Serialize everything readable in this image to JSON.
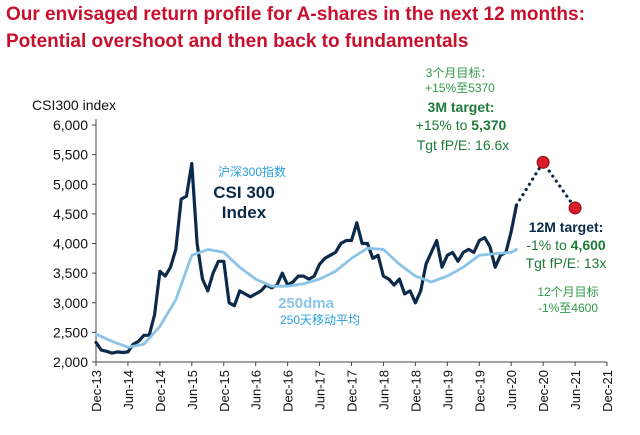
{
  "title_line1": "Our envisaged return profile for A-shares in the next 12 months:",
  "title_line2": "Potential overshoot and then back to fundamentals",
  "chart_data": {
    "type": "line",
    "ylabel": "CSI300 index",
    "ylim": [
      2000,
      6000
    ],
    "yticks": [
      2000,
      2500,
      3000,
      3500,
      4000,
      4500,
      5000,
      5500,
      6000
    ],
    "ytick_labels": [
      "2,000",
      "2,500",
      "3,000",
      "3,500",
      "4,000",
      "4,500",
      "5,000",
      "5,500",
      "6,000"
    ],
    "xlim": [
      "2013-12",
      "2021-12"
    ],
    "xtick_labels": [
      "Dec-13",
      "Jun-14",
      "Dec-14",
      "Jun-15",
      "Dec-15",
      "Jun-16",
      "Dec-16",
      "Jun-17",
      "Dec-17",
      "Jun-18",
      "Dec-18",
      "Jun-19",
      "Dec-19",
      "Jun-20",
      "Dec-20",
      "Jun-21",
      "Dec-21"
    ],
    "grid": false,
    "series": [
      {
        "name": "CSI 300 Index",
        "name_cn": "沪深300指数",
        "color": "#0b2a4a",
        "x": [
          "2013-12",
          "2014-01",
          "2014-02",
          "2014-03",
          "2014-04",
          "2014-05",
          "2014-06",
          "2014-07",
          "2014-08",
          "2014-09",
          "2014-10",
          "2014-11",
          "2014-12",
          "2015-01",
          "2015-02",
          "2015-03",
          "2015-04",
          "2015-05",
          "2015-06",
          "2015-07",
          "2015-08",
          "2015-09",
          "2015-10",
          "2015-11",
          "2015-12",
          "2016-01",
          "2016-02",
          "2016-03",
          "2016-04",
          "2016-05",
          "2016-06",
          "2016-07",
          "2016-08",
          "2016-09",
          "2016-10",
          "2016-11",
          "2016-12",
          "2017-01",
          "2017-02",
          "2017-03",
          "2017-04",
          "2017-05",
          "2017-06",
          "2017-07",
          "2017-08",
          "2017-09",
          "2017-10",
          "2017-11",
          "2017-12",
          "2018-01",
          "2018-02",
          "2018-03",
          "2018-04",
          "2018-05",
          "2018-06",
          "2018-07",
          "2018-08",
          "2018-09",
          "2018-10",
          "2018-11",
          "2018-12",
          "2019-01",
          "2019-02",
          "2019-03",
          "2019-04",
          "2019-05",
          "2019-06",
          "2019-07",
          "2019-08",
          "2019-09",
          "2019-10",
          "2019-11",
          "2019-12",
          "2020-01",
          "2020-02",
          "2020-03",
          "2020-04",
          "2020-05",
          "2020-06",
          "2020-07"
        ],
        "y": [
          2330,
          2200,
          2180,
          2150,
          2170,
          2160,
          2170,
          2300,
          2350,
          2450,
          2450,
          2800,
          3530,
          3450,
          3600,
          3900,
          4750,
          4800,
          5350,
          4000,
          3400,
          3200,
          3500,
          3700,
          3700,
          3000,
          2950,
          3200,
          3150,
          3100,
          3150,
          3200,
          3300,
          3250,
          3300,
          3500,
          3300,
          3350,
          3450,
          3450,
          3400,
          3450,
          3650,
          3750,
          3800,
          3850,
          4000,
          4050,
          4050,
          4350,
          4000,
          4000,
          3750,
          3800,
          3450,
          3400,
          3300,
          3400,
          3150,
          3200,
          3000,
          3200,
          3650,
          3850,
          4050,
          3600,
          3800,
          3850,
          3700,
          3850,
          3900,
          3850,
          4050,
          4100,
          3950,
          3600,
          3800,
          3850,
          4200,
          4650
        ]
      },
      {
        "name": "250dma",
        "name_cn": "250天移动平均",
        "color": "#8cc4e8",
        "x": [
          "2013-12",
          "2014-03",
          "2014-06",
          "2014-09",
          "2014-12",
          "2015-03",
          "2015-06",
          "2015-09",
          "2015-12",
          "2016-03",
          "2016-06",
          "2016-09",
          "2016-12",
          "2017-03",
          "2017-06",
          "2017-09",
          "2017-12",
          "2018-03",
          "2018-06",
          "2018-09",
          "2018-12",
          "2019-03",
          "2019-06",
          "2019-09",
          "2019-12",
          "2020-03",
          "2020-06",
          "2020-07"
        ],
        "y": [
          2470,
          2350,
          2250,
          2300,
          2600,
          3050,
          3800,
          3900,
          3850,
          3600,
          3400,
          3280,
          3280,
          3320,
          3400,
          3530,
          3750,
          3920,
          3900,
          3650,
          3450,
          3350,
          3450,
          3600,
          3800,
          3830,
          3850,
          3900
        ]
      }
    ],
    "projection": {
      "x": [
        "2020-07",
        "2020-12",
        "2021-06"
      ],
      "y": [
        4650,
        5370,
        4600
      ],
      "points": [
        {
          "x": "2020-12",
          "y": 5370,
          "color": "#d81e2b"
        },
        {
          "x": "2021-06",
          "y": 4600,
          "color": "#d81e2b"
        }
      ]
    },
    "annotations": [
      {
        "id": "csi_cn",
        "text": "沪深300指数",
        "color": "#2aa0d8"
      },
      {
        "id": "csi_l1",
        "text": "CSI 300",
        "color": "#0b2a4a"
      },
      {
        "id": "csi_l2",
        "text": "Index",
        "color": "#0b2a4a"
      },
      {
        "id": "dma_en",
        "text": "250dma",
        "color": "#8cc4e8"
      },
      {
        "id": "dma_cn",
        "text": "250天移动平均",
        "color": "#2aa0d8"
      },
      {
        "id": "t3_cn1",
        "text": "3个月目标：",
        "color": "#2e9a47"
      },
      {
        "id": "t3_cn2",
        "text": "+15%至5370",
        "color": "#2e9a47"
      },
      {
        "id": "t3_title",
        "text": "3M target:",
        "color": "#1f7a3a"
      },
      {
        "id": "t3_line2a",
        "text": "+15% to ",
        "color": "#1f7a3a"
      },
      {
        "id": "t3_line2b",
        "text": "5,370",
        "color": "#1f7a3a"
      },
      {
        "id": "t3_line3",
        "text": "Tgt fP/E: 16.6x",
        "color": "#1f7a3a"
      },
      {
        "id": "t12_title",
        "text": "12M target:",
        "color": "#0b2a4a"
      },
      {
        "id": "t12_line2a",
        "text": "-1% to ",
        "color": "#1f7a3a"
      },
      {
        "id": "t12_line2b",
        "text": "4,600",
        "color": "#1f7a3a"
      },
      {
        "id": "t12_line3",
        "text": "Tgt fP/E: 13x",
        "color": "#1f7a3a"
      },
      {
        "id": "t12_cn1",
        "text": "12个月目标",
        "color": "#2e9a47"
      },
      {
        "id": "t12_cn2",
        "text": "-1%至4600",
        "color": "#2e9a47"
      }
    ]
  }
}
